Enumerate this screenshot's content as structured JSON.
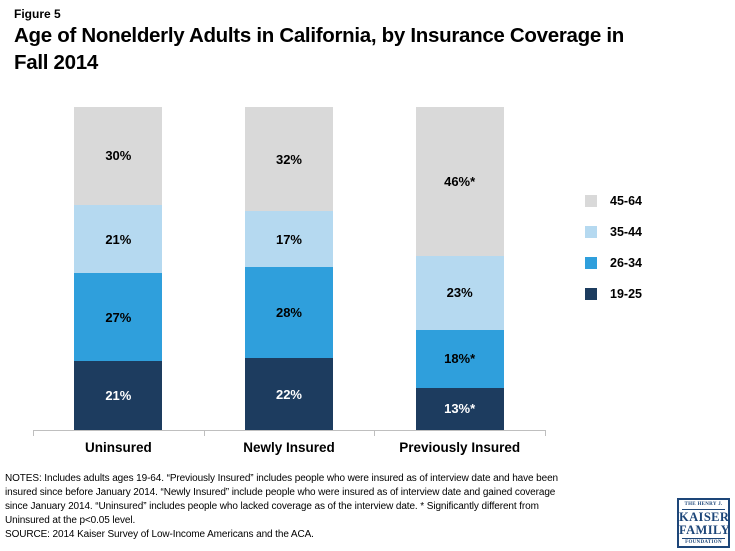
{
  "header": {
    "figure_label": "Figure 5",
    "title_lines": [
      "Age of Nonelderly Adults in California, by Insurance Coverage in",
      "Fall 2014"
    ]
  },
  "chart_data": {
    "type": "bar",
    "variant": "stacked-100-percent",
    "title": "Age of Nonelderly Adults in California, by Insurance Coverage in Fall 2014",
    "categories": [
      "Uninsured",
      "Newly Insured",
      "Previously Insured"
    ],
    "series_top_to_bottom": [
      {
        "name": "45-64",
        "color": "#d9d9d9",
        "label_color": "#000000",
        "values": [
          30,
          32,
          46
        ],
        "labels": [
          "30%",
          "32%",
          "46%*"
        ]
      },
      {
        "name": "35-44",
        "color": "#b5d9f0",
        "label_color": "#000000",
        "values": [
          21,
          17,
          23
        ],
        "labels": [
          "21%",
          "17%",
          "23%"
        ]
      },
      {
        "name": "26-34",
        "color": "#2f9fdc",
        "label_color": "#000000",
        "values": [
          27,
          28,
          18
        ],
        "labels": [
          "27%",
          "28%",
          "18%*"
        ]
      },
      {
        "name": "19-25",
        "color": "#1d3c5f",
        "label_color": "#ffffff",
        "values": [
          21,
          22,
          13
        ],
        "labels": [
          "21%",
          "22%",
          "13%*"
        ]
      }
    ],
    "legend_position": "right",
    "legend_order": [
      "45-64",
      "35-44",
      "26-34",
      "19-25"
    ],
    "ylim": [
      0,
      100
    ],
    "grid": false,
    "axis_color": "#bfbfbf",
    "annotation_note": "* Significantly different from Uninsured at the p<0.05 level."
  },
  "notes": {
    "lines": [
      "NOTES: Includes adults ages 19-64. “Previously Insured” includes people who were insured as of interview date and have been",
      "insured since before January 2014. “Newly Insured” include people who were insured as of interview date and gained coverage",
      "since January 2014. “Uninsured” includes people who lacked coverage as of the interview date.  * Significantly different from",
      "Uninsured at the p<0.05 level.",
      "SOURCE: 2014 Kaiser Survey of Low-Income Americans and the ACA."
    ]
  },
  "logo": {
    "top": "THE HENRY J.",
    "name1": "KAISER",
    "name2": "FAMILY",
    "bottom": "FOUNDATION"
  }
}
